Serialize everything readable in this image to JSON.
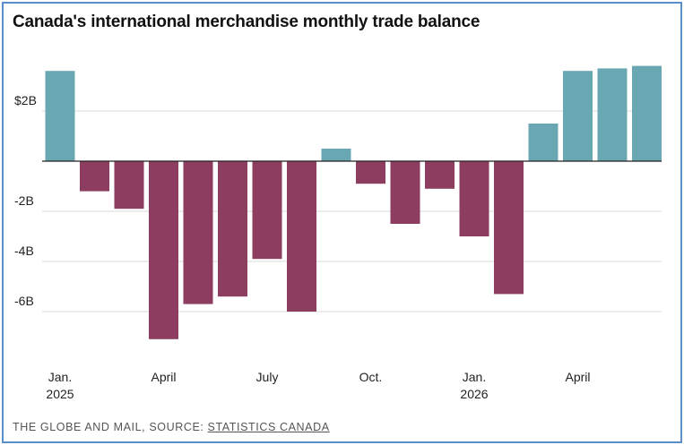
{
  "title": "Canada's international merchandise monthly trade balance",
  "footer": {
    "publisher": "THE GLOBE AND MAIL",
    "separator": ", SOURCE: ",
    "source": "STATISTICS CANADA"
  },
  "colors": {
    "positive": "#69a8b3",
    "negative": "#8c3d60",
    "frame": "#5b8fc9",
    "grid": "#d9d9d9",
    "axis": "#222222"
  },
  "chart_data": {
    "type": "bar",
    "title": "Canada's international merchandise monthly trade balance",
    "xlabel": "",
    "ylabel": "",
    "ylim": [
      -8,
      4
    ],
    "yticks": [
      {
        "value": 2,
        "label": "$2B"
      },
      {
        "value": -2,
        "label": "-2B"
      },
      {
        "value": -4,
        "label": "-4B"
      },
      {
        "value": -6,
        "label": "-6B"
      }
    ],
    "categories": [
      "2025-01",
      "2025-02",
      "2025-03",
      "2025-04",
      "2025-05",
      "2025-06",
      "2025-07",
      "2025-08",
      "2025-09",
      "2025-10",
      "2025-11",
      "2025-12",
      "2026-01",
      "2026-02",
      "2026-03",
      "2026-04",
      "2026-05",
      "2026-06"
    ],
    "values": [
      3.6,
      -1.2,
      -1.9,
      -7.1,
      -5.7,
      -5.4,
      -3.9,
      -6.0,
      0.5,
      -0.9,
      -2.5,
      -1.1,
      -3.0,
      -5.3,
      1.5,
      3.6,
      3.7,
      3.8
    ],
    "xticks": [
      {
        "index": 0,
        "label": "Jan.",
        "sublabel": "2025"
      },
      {
        "index": 3,
        "label": "April",
        "sublabel": ""
      },
      {
        "index": 6,
        "label": "July",
        "sublabel": ""
      },
      {
        "index": 9,
        "label": "Oct.",
        "sublabel": ""
      },
      {
        "index": 12,
        "label": "Jan.",
        "sublabel": "2026"
      },
      {
        "index": 15,
        "label": "April",
        "sublabel": ""
      }
    ],
    "grid": true,
    "legend": "none"
  }
}
